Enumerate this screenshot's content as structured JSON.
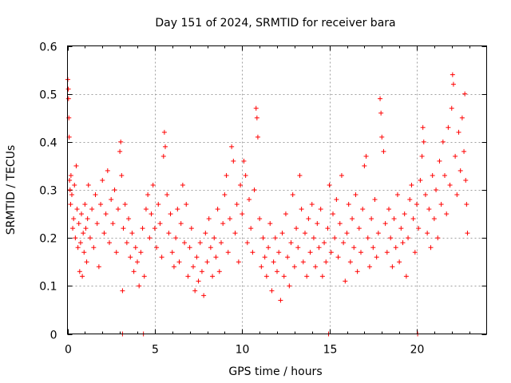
{
  "chart_data": {
    "type": "scatter",
    "title": "Day 151 of 2024, SRMTID for receiver bara",
    "xlabel": "GPS time / hours",
    "ylabel": "SRMTID / TECUs",
    "xlim": [
      0,
      24
    ],
    "ylim": [
      0,
      0.6
    ],
    "x_ticks": [
      0,
      5,
      10,
      15,
      20
    ],
    "x_tick_labels": [
      "0",
      "5",
      "10",
      "15",
      "20"
    ],
    "y_ticks": [
      0,
      0.1,
      0.2,
      0.3,
      0.4,
      0.5,
      0.6
    ],
    "y_tick_labels": [
      "0",
      "0.1",
      "0.2",
      "0.3",
      "0.4",
      "0.5",
      "0.6"
    ],
    "grid": true,
    "marker": "+",
    "color": "#ff0000",
    "series": [
      {
        "name": "SRMTID",
        "points": [
          [
            0.02,
            0.53
          ],
          [
            0.05,
            0.51
          ],
          [
            0.06,
            0.49
          ],
          [
            0.08,
            0.45
          ],
          [
            0.1,
            0.41
          ],
          [
            0.12,
            0.32
          ],
          [
            0.15,
            0.3
          ],
          [
            0.18,
            0.27
          ],
          [
            0.2,
            0.33
          ],
          [
            0.25,
            0.29
          ],
          [
            0.3,
            0.22
          ],
          [
            0.35,
            0.24
          ],
          [
            0.4,
            0.31
          ],
          [
            0.45,
            0.2
          ],
          [
            0.5,
            0.35
          ],
          [
            0.55,
            0.26
          ],
          [
            0.6,
            0.18
          ],
          [
            0.65,
            0.23
          ],
          [
            0.7,
            0.13
          ],
          [
            0.75,
            0.19
          ],
          [
            0.8,
            0.25
          ],
          [
            0.85,
            0.12
          ],
          [
            0.9,
            0.21
          ],
          [
            0.95,
            0.17
          ],
          [
            1.0,
            0.27
          ],
          [
            1.05,
            0.22
          ],
          [
            1.1,
            0.15
          ],
          [
            1.15,
            0.24
          ],
          [
            1.2,
            0.31
          ],
          [
            1.3,
            0.2
          ],
          [
            1.4,
            0.26
          ],
          [
            1.5,
            0.18
          ],
          [
            1.6,
            0.29
          ],
          [
            1.7,
            0.23
          ],
          [
            1.8,
            0.14
          ],
          [
            1.9,
            0.27
          ],
          [
            2.0,
            0.32
          ],
          [
            2.1,
            0.21
          ],
          [
            2.2,
            0.25
          ],
          [
            2.3,
            0.34
          ],
          [
            2.4,
            0.19
          ],
          [
            2.5,
            0.28
          ],
          [
            2.6,
            0.23
          ],
          [
            2.7,
            0.3
          ],
          [
            2.8,
            0.17
          ],
          [
            2.9,
            0.26
          ],
          [
            3.0,
            0.38
          ],
          [
            3.05,
            0.4
          ],
          [
            3.1,
            0.33
          ],
          [
            3.15,
            0.09
          ],
          [
            3.2,
            0.22
          ],
          [
            3.3,
            0.27
          ],
          [
            3.4,
            0.19
          ],
          [
            3.5,
            0.24
          ],
          [
            3.6,
            0.16
          ],
          [
            3.7,
            0.21
          ],
          [
            3.8,
            0.13
          ],
          [
            3.9,
            0.18
          ],
          [
            4.0,
            0.15
          ],
          [
            4.1,
            0.1
          ],
          [
            4.2,
            0.17
          ],
          [
            4.3,
            0.22
          ],
          [
            4.4,
            0.12
          ],
          [
            4.5,
            0.26
          ],
          [
            4.6,
            0.29
          ],
          [
            4.7,
            0.2
          ],
          [
            4.8,
            0.25
          ],
          [
            4.9,
            0.31
          ],
          [
            5.0,
            0.22
          ],
          [
            5.1,
            0.18
          ],
          [
            5.2,
            0.27
          ],
          [
            5.3,
            0.23
          ],
          [
            5.4,
            0.16
          ],
          [
            5.5,
            0.37
          ],
          [
            5.55,
            0.42
          ],
          [
            5.6,
            0.39
          ],
          [
            5.7,
            0.29
          ],
          [
            5.8,
            0.21
          ],
          [
            5.9,
            0.25
          ],
          [
            6.0,
            0.17
          ],
          [
            6.1,
            0.14
          ],
          [
            6.2,
            0.2
          ],
          [
            6.3,
            0.26
          ],
          [
            6.4,
            0.15
          ],
          [
            6.5,
            0.23
          ],
          [
            6.6,
            0.31
          ],
          [
            6.7,
            0.19
          ],
          [
            6.8,
            0.27
          ],
          [
            6.9,
            0.12
          ],
          [
            7.0,
            0.18
          ],
          [
            7.1,
            0.22
          ],
          [
            7.2,
            0.14
          ],
          [
            7.3,
            0.09
          ],
          [
            7.4,
            0.16
          ],
          [
            7.5,
            0.11
          ],
          [
            7.6,
            0.19
          ],
          [
            7.7,
            0.13
          ],
          [
            7.8,
            0.08
          ],
          [
            7.9,
            0.21
          ],
          [
            8.0,
            0.15
          ],
          [
            8.1,
            0.24
          ],
          [
            8.2,
            0.18
          ],
          [
            8.3,
            0.12
          ],
          [
            8.4,
            0.2
          ],
          [
            8.5,
            0.16
          ],
          [
            8.6,
            0.26
          ],
          [
            8.7,
            0.13
          ],
          [
            8.8,
            0.19
          ],
          [
            8.9,
            0.23
          ],
          [
            9.0,
            0.29
          ],
          [
            9.1,
            0.33
          ],
          [
            9.2,
            0.17
          ],
          [
            9.3,
            0.24
          ],
          [
            9.4,
            0.39
          ],
          [
            9.5,
            0.36
          ],
          [
            9.6,
            0.21
          ],
          [
            9.7,
            0.27
          ],
          [
            9.8,
            0.15
          ],
          [
            9.9,
            0.31
          ],
          [
            10.0,
            0.25
          ],
          [
            10.1,
            0.36
          ],
          [
            10.2,
            0.33
          ],
          [
            10.3,
            0.19
          ],
          [
            10.4,
            0.28
          ],
          [
            10.5,
            0.22
          ],
          [
            10.6,
            0.17
          ],
          [
            10.7,
            0.3
          ],
          [
            10.8,
            0.47
          ],
          [
            10.85,
            0.45
          ],
          [
            10.9,
            0.41
          ],
          [
            11.0,
            0.24
          ],
          [
            11.1,
            0.14
          ],
          [
            11.2,
            0.2
          ],
          [
            11.3,
            0.16
          ],
          [
            11.4,
            0.12
          ],
          [
            11.5,
            0.18
          ],
          [
            11.6,
            0.23
          ],
          [
            11.7,
            0.09
          ],
          [
            11.8,
            0.15
          ],
          [
            11.9,
            0.2
          ],
          [
            12.0,
            0.13
          ],
          [
            12.1,
            0.17
          ],
          [
            12.2,
            0.07
          ],
          [
            12.3,
            0.21
          ],
          [
            12.4,
            0.12
          ],
          [
            12.5,
            0.25
          ],
          [
            12.6,
            0.16
          ],
          [
            12.7,
            0.1
          ],
          [
            12.8,
            0.19
          ],
          [
            12.9,
            0.29
          ],
          [
            13.0,
            0.14
          ],
          [
            13.1,
            0.22
          ],
          [
            13.2,
            0.18
          ],
          [
            13.3,
            0.33
          ],
          [
            13.4,
            0.26
          ],
          [
            13.5,
            0.15
          ],
          [
            13.6,
            0.21
          ],
          [
            13.7,
            0.12
          ],
          [
            13.8,
            0.24
          ],
          [
            13.9,
            0.17
          ],
          [
            14.0,
            0.27
          ],
          [
            14.1,
            0.2
          ],
          [
            14.2,
            0.14
          ],
          [
            14.3,
            0.23
          ],
          [
            14.4,
            0.18
          ],
          [
            14.5,
            0.26
          ],
          [
            14.6,
            0.12
          ],
          [
            14.7,
            0.19
          ],
          [
            14.8,
            0.15
          ],
          [
            14.9,
            0.22
          ],
          [
            15.0,
            0.31
          ],
          [
            15.1,
            0.17
          ],
          [
            15.2,
            0.25
          ],
          [
            15.3,
            0.2
          ],
          [
            15.4,
            0.28
          ],
          [
            15.5,
            0.16
          ],
          [
            15.6,
            0.23
          ],
          [
            15.7,
            0.33
          ],
          [
            15.8,
            0.19
          ],
          [
            15.9,
            0.11
          ],
          [
            16.0,
            0.21
          ],
          [
            16.1,
            0.27
          ],
          [
            16.2,
            0.15
          ],
          [
            16.3,
            0.24
          ],
          [
            16.4,
            0.18
          ],
          [
            16.5,
            0.29
          ],
          [
            16.6,
            0.13
          ],
          [
            16.7,
            0.22
          ],
          [
            16.8,
            0.17
          ],
          [
            16.9,
            0.26
          ],
          [
            17.0,
            0.35
          ],
          [
            17.1,
            0.37
          ],
          [
            17.2,
            0.2
          ],
          [
            17.3,
            0.14
          ],
          [
            17.4,
            0.24
          ],
          [
            17.5,
            0.18
          ],
          [
            17.6,
            0.28
          ],
          [
            17.7,
            0.16
          ],
          [
            17.8,
            0.21
          ],
          [
            17.9,
            0.49
          ],
          [
            17.95,
            0.46
          ],
          [
            18.0,
            0.41
          ],
          [
            18.1,
            0.38
          ],
          [
            18.2,
            0.23
          ],
          [
            18.3,
            0.17
          ],
          [
            18.4,
            0.26
          ],
          [
            18.5,
            0.2
          ],
          [
            18.6,
            0.14
          ],
          [
            18.7,
            0.24
          ],
          [
            18.8,
            0.18
          ],
          [
            18.9,
            0.29
          ],
          [
            19.0,
            0.15
          ],
          [
            19.1,
            0.22
          ],
          [
            19.2,
            0.19
          ],
          [
            19.3,
            0.25
          ],
          [
            19.4,
            0.12
          ],
          [
            19.5,
            0.2
          ],
          [
            19.6,
            0.28
          ],
          [
            19.7,
            0.31
          ],
          [
            19.8,
            0.24
          ],
          [
            19.9,
            0.17
          ],
          [
            20.0,
            0.27
          ],
          [
            20.1,
            0.22
          ],
          [
            20.2,
            0.32
          ],
          [
            20.3,
            0.37
          ],
          [
            20.35,
            0.43
          ],
          [
            20.4,
            0.4
          ],
          [
            20.5,
            0.29
          ],
          [
            20.6,
            0.21
          ],
          [
            20.7,
            0.26
          ],
          [
            20.8,
            0.18
          ],
          [
            20.9,
            0.33
          ],
          [
            21.0,
            0.24
          ],
          [
            21.1,
            0.3
          ],
          [
            21.2,
            0.2
          ],
          [
            21.3,
            0.36
          ],
          [
            21.4,
            0.27
          ],
          [
            21.5,
            0.4
          ],
          [
            21.6,
            0.33
          ],
          [
            21.7,
            0.25
          ],
          [
            21.8,
            0.43
          ],
          [
            21.9,
            0.31
          ],
          [
            22.0,
            0.47
          ],
          [
            22.05,
            0.54
          ],
          [
            22.1,
            0.52
          ],
          [
            22.2,
            0.37
          ],
          [
            22.3,
            0.29
          ],
          [
            22.4,
            0.42
          ],
          [
            22.5,
            0.34
          ],
          [
            22.6,
            0.45
          ],
          [
            22.7,
            0.38
          ],
          [
            22.75,
            0.5
          ],
          [
            22.8,
            0.32
          ],
          [
            22.85,
            0.27
          ],
          [
            22.9,
            0.21
          ]
        ]
      }
    ],
    "zero_markers": [
      3.15,
      4.35,
      14.95,
      20.05
    ]
  }
}
